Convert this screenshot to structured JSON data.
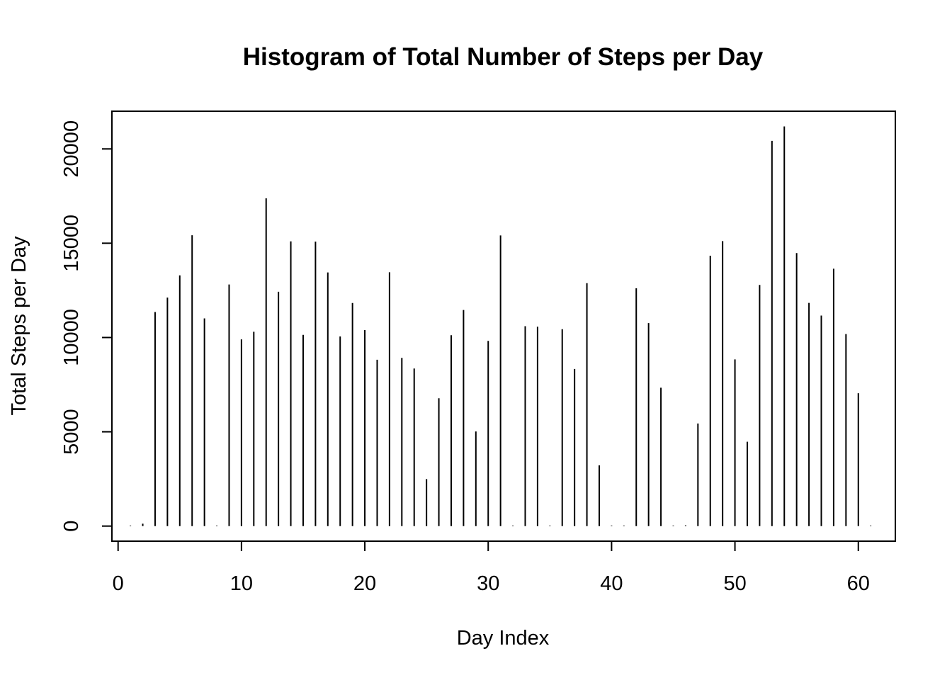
{
  "chart_data": {
    "type": "bar",
    "style": "histogram-lines",
    "title": "Histogram of Total Number of Steps per Day",
    "xlabel": "Day Index",
    "ylabel": "Total Steps per Day",
    "xlim": [
      -0.5,
      63
    ],
    "ylim": [
      -800,
      22000
    ],
    "xticks": [
      0,
      10,
      20,
      30,
      40,
      50,
      60
    ],
    "yticks": [
      0,
      5000,
      10000,
      15000,
      20000
    ],
    "grid": false,
    "legend": "none",
    "color": "#000000",
    "x": [
      1,
      2,
      3,
      4,
      5,
      6,
      7,
      8,
      9,
      10,
      11,
      12,
      13,
      14,
      15,
      16,
      17,
      18,
      19,
      20,
      21,
      22,
      23,
      24,
      25,
      26,
      27,
      28,
      29,
      30,
      31,
      32,
      33,
      34,
      35,
      36,
      37,
      38,
      39,
      40,
      41,
      42,
      43,
      44,
      45,
      46,
      47,
      48,
      49,
      50,
      51,
      52,
      53,
      54,
      55,
      56,
      57,
      58,
      59,
      60,
      61
    ],
    "values": [
      0,
      126,
      11352,
      12116,
      13294,
      15420,
      11015,
      0,
      12811,
      9900,
      10304,
      17382,
      12426,
      15098,
      10139,
      15084,
      13452,
      10056,
      11829,
      10395,
      8821,
      13460,
      8918,
      8355,
      2492,
      6778,
      10119,
      11458,
      5018,
      9819,
      15414,
      0,
      10600,
      10571,
      0,
      10439,
      8334,
      12883,
      3219,
      0,
      0,
      12608,
      10765,
      7336,
      0,
      41,
      5441,
      14339,
      15110,
      8841,
      4472,
      12787,
      20427,
      21194,
      14478,
      11834,
      11162,
      13646,
      10183,
      7047,
      0
    ]
  }
}
